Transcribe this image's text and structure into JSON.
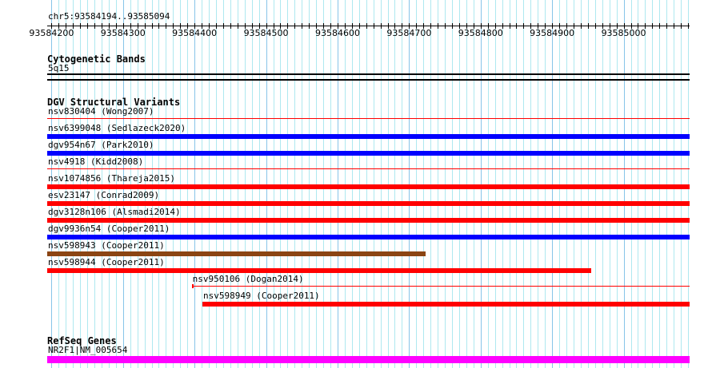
{
  "view": {
    "start": 93584194,
    "end": 93585094,
    "location_label": "chr5:93584194..93585094"
  },
  "ruler": {
    "ticks": [
      "93584200",
      "93584300",
      "93584400",
      "93584500",
      "93584600",
      "93584700",
      "93584800",
      "93584900",
      "93585000"
    ]
  },
  "tracks": {
    "cytobands": {
      "title": "Cytogenetic Bands",
      "band": "5q15"
    },
    "dgv": {
      "title": "DGV Structural Variants",
      "features": [
        {
          "label": "nsv830404 (Wong2007)",
          "start": 93584194,
          "end": 93585094,
          "color": "#ff0000",
          "style": "line"
        },
        {
          "label": "nsv6399048 (Sedlazeck2020)",
          "start": 93584194,
          "end": 93585094,
          "color": "#0000ff",
          "style": "bar"
        },
        {
          "label": "dgv954n67 (Park2010)",
          "start": 93584194,
          "end": 93585094,
          "color": "#0000ff",
          "style": "bar"
        },
        {
          "label": "nsv4918 (Kidd2008)",
          "start": 93584194,
          "end": 93585094,
          "color": "#ff0000",
          "style": "line"
        },
        {
          "label": "nsv1074856 (Thareja2015)",
          "start": 93584194,
          "end": 93585094,
          "color": "#ff0000",
          "style": "bar"
        },
        {
          "label": "esv23147 (Conrad2009)",
          "start": 93584194,
          "end": 93585094,
          "color": "#ff0000",
          "style": "bar"
        },
        {
          "label": "dgv3128n106 (Alsmadi2014)",
          "start": 93584194,
          "end": 93585094,
          "color": "#ff0000",
          "style": "bar"
        },
        {
          "label": "dgv9936n54 (Cooper2011)",
          "start": 93584194,
          "end": 93585094,
          "color": "#0000ff",
          "style": "bar"
        },
        {
          "label": "nsv598943 (Cooper2011)",
          "start": 93584194,
          "end": 93584723,
          "color": "#8b4513",
          "style": "bar"
        },
        {
          "label": "nsv598944 (Cooper2011)",
          "start": 93584194,
          "end": 93584955,
          "color": "#ff0000",
          "style": "bar"
        },
        {
          "label": "nsv950106 (Dogan2014)",
          "start": 93584396,
          "end": 93585094,
          "color": "#ff0000",
          "style": "line"
        },
        {
          "label": "nsv598949 (Cooper2011)",
          "start": 93584411,
          "end": 93585094,
          "color": "#ff0000",
          "style": "bar"
        }
      ]
    },
    "refseq": {
      "title": "RefSeq Genes",
      "gene": {
        "label": "NR2F1|NM_005654",
        "color": "#ff00ff"
      }
    }
  }
}
